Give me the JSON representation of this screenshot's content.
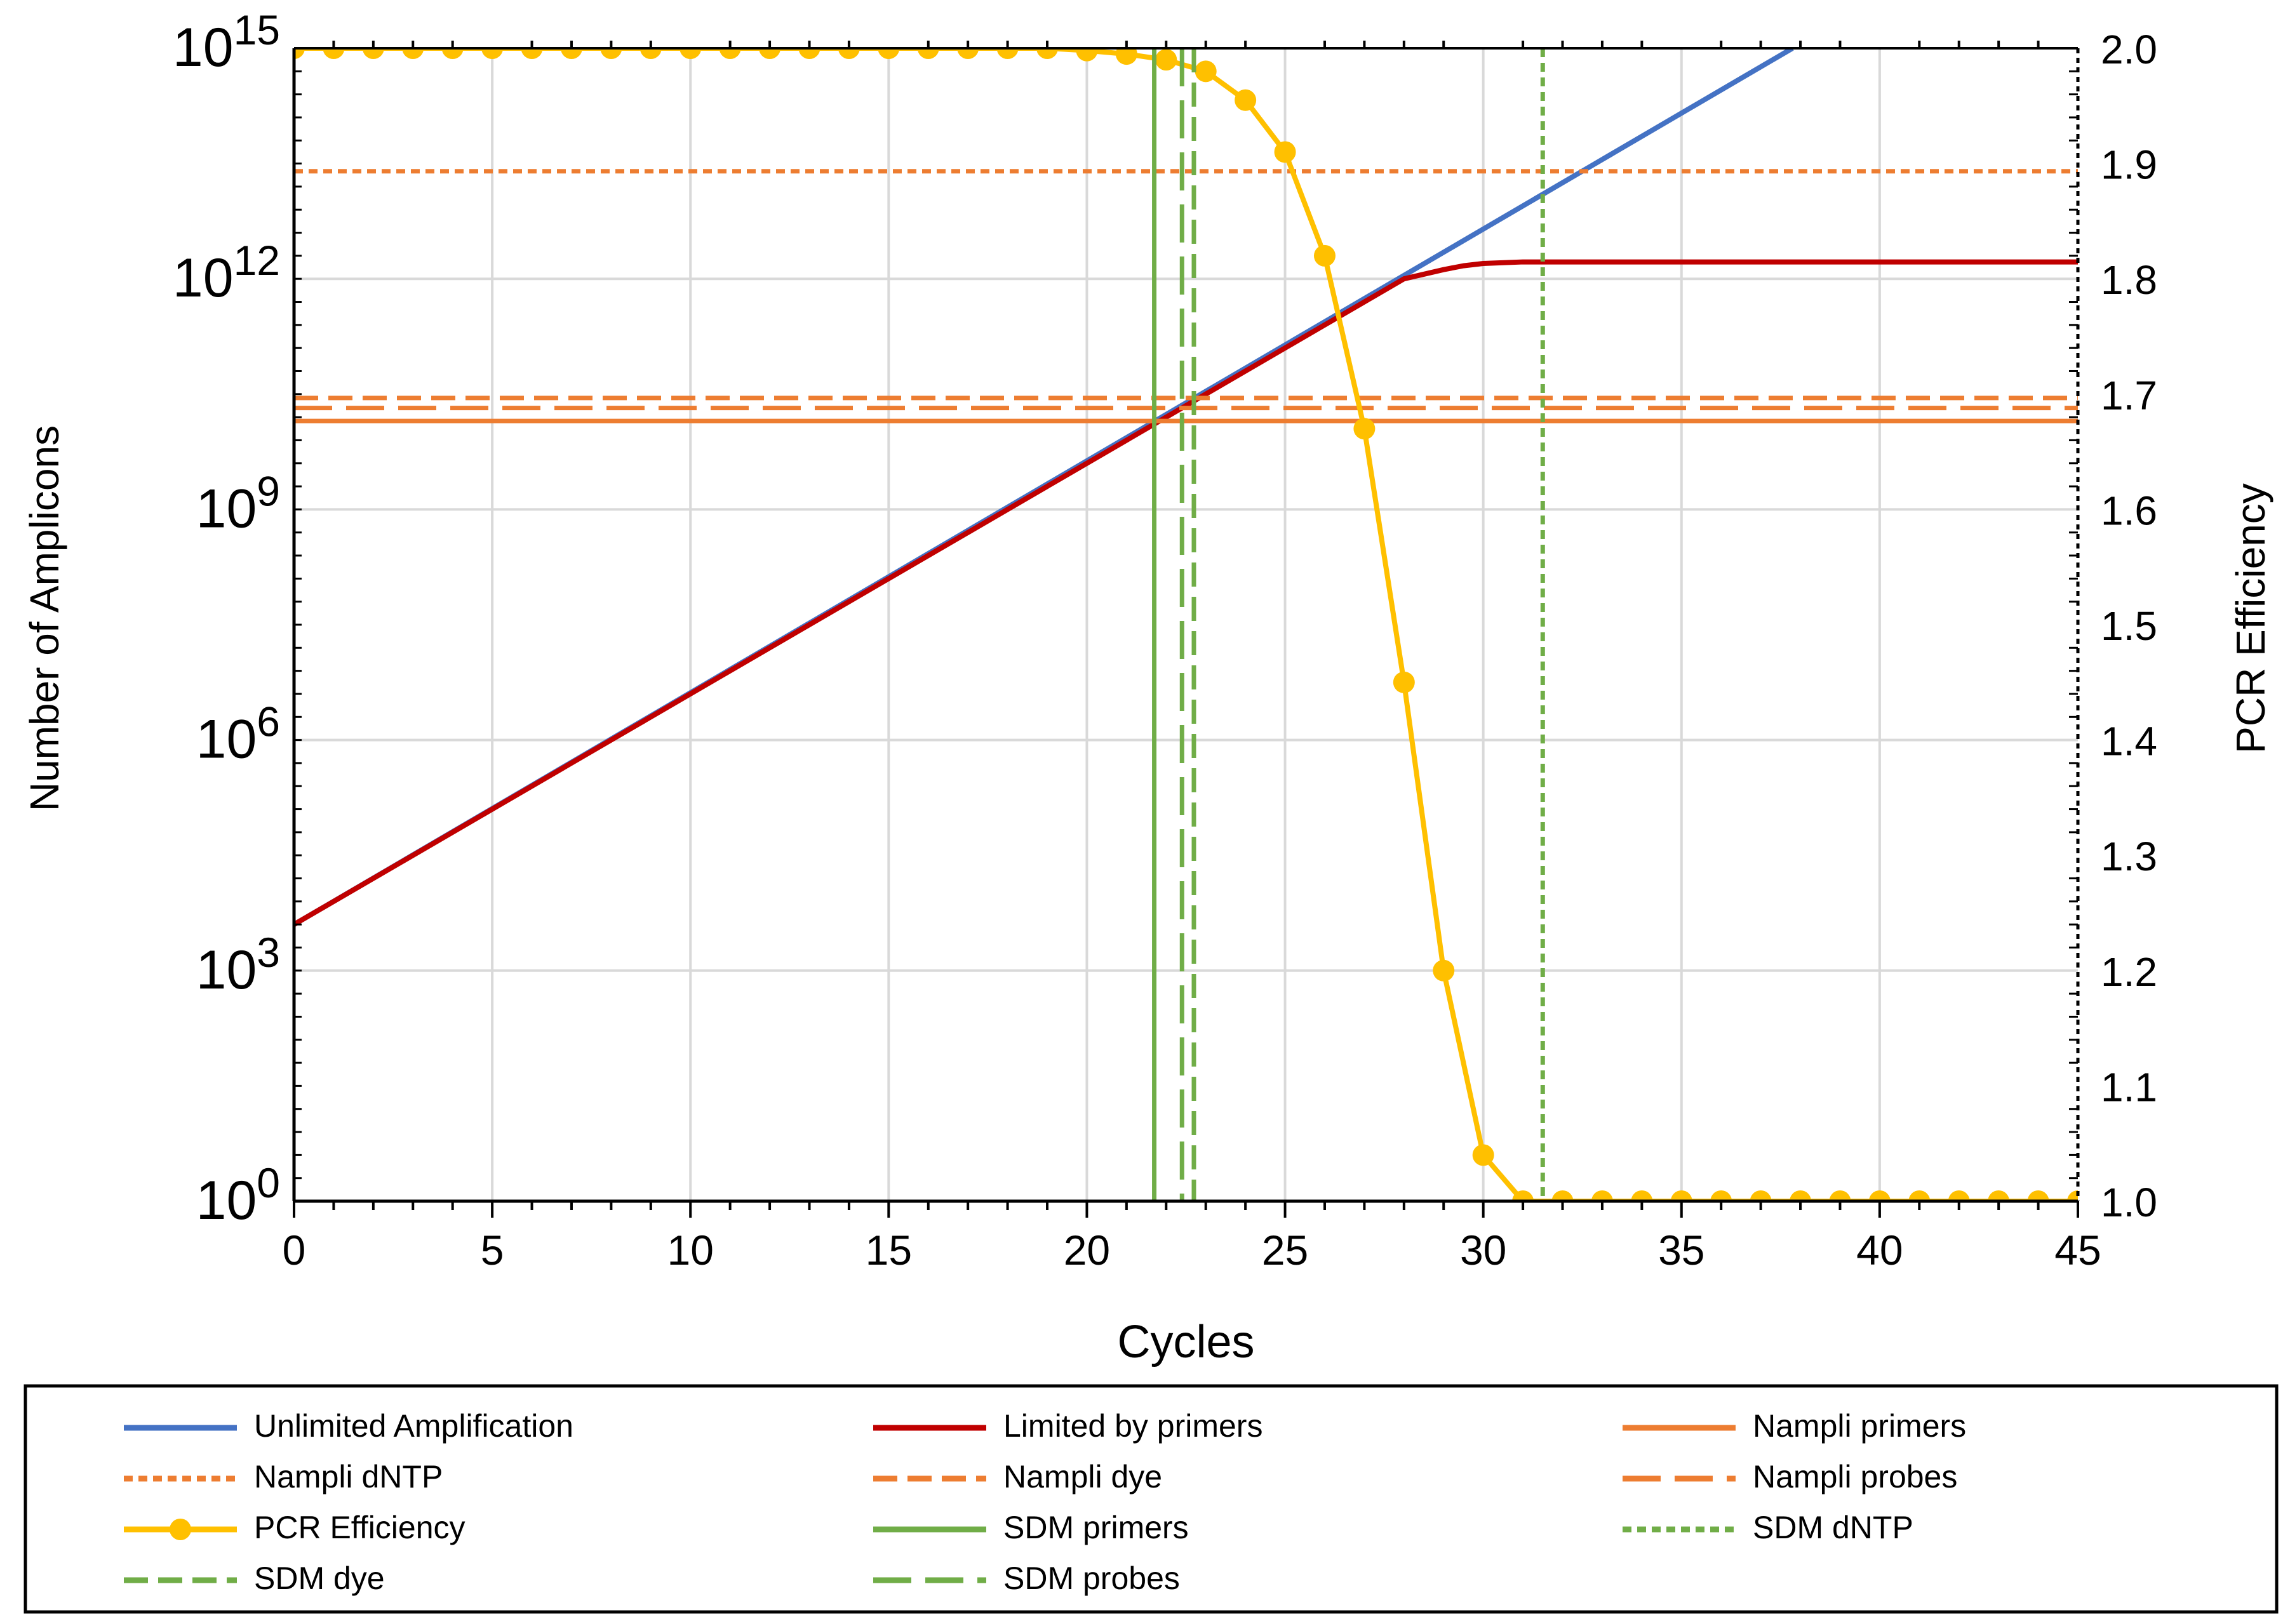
{
  "chart_data": {
    "type": "line",
    "xlabel": "Cycles",
    "ylabel": "Number of Amplicons",
    "y2label": "PCR Efficiency",
    "xlim": [
      0,
      45
    ],
    "ylim_log10": [
      0,
      15
    ],
    "y2lim": [
      1.0,
      2.0
    ],
    "grid": true,
    "legend_position": "bottom",
    "x_ticks": [
      "0",
      "5",
      "10",
      "15",
      "20",
      "25",
      "30",
      "35",
      "40",
      "45"
    ],
    "y_ticks": [
      {
        "base": "10",
        "exp": "15",
        "log10": 15
      },
      {
        "base": "10",
        "exp": "12",
        "log10": 12
      },
      {
        "base": "10",
        "exp": "9",
        "log10": 9
      },
      {
        "base": "10",
        "exp": "6",
        "log10": 6
      },
      {
        "base": "10",
        "exp": "3",
        "log10": 3
      },
      {
        "base": "10",
        "exp": "0",
        "log10": 0
      }
    ],
    "y2_ticks": [
      "2.0",
      "1.9",
      "1.8",
      "1.7",
      "1.6",
      "1.5",
      "1.4",
      "1.3",
      "1.2",
      "1.1",
      "1.0"
    ],
    "series": [
      {
        "name": "Unlimited Amplification",
        "color": "#4472C4",
        "style": "solid",
        "axis": "left",
        "x": [
          0,
          37.8
        ],
        "log10_y": [
          3.6,
          15
        ]
      },
      {
        "name": "Limited by primers",
        "color": "#C00000",
        "style": "solid",
        "axis": "left",
        "x": [
          0,
          26,
          27,
          28,
          29,
          29.5,
          30,
          31,
          45
        ],
        "log10_y": [
          3.6,
          11.4,
          11.7,
          12.0,
          12.12,
          12.17,
          12.2,
          12.22,
          12.22
        ]
      },
      {
        "name": "Nampli primers",
        "color": "#ED7D31",
        "style": "solid",
        "axis": "left",
        "hline": 10.15
      },
      {
        "name": "Nampli dNTP",
        "color": "#ED7D31",
        "style": "dot",
        "axis": "left",
        "hline": 13.4
      },
      {
        "name": "Nampli dye",
        "color": "#ED7D31",
        "style": "dash",
        "axis": "left",
        "hline": 10.45
      },
      {
        "name": "Nampli probes",
        "color": "#ED7D31",
        "style": "longdash",
        "axis": "left",
        "hline": 10.32
      },
      {
        "name": "PCR Efficiency",
        "color": "#FFC000",
        "style": "marker",
        "axis": "right",
        "x": [
          0,
          1,
          2,
          3,
          4,
          5,
          6,
          7,
          8,
          9,
          10,
          11,
          12,
          13,
          14,
          15,
          16,
          17,
          18,
          19,
          20,
          21,
          22,
          23,
          24,
          25,
          26,
          27,
          28,
          29,
          30,
          31,
          32,
          33,
          34,
          35,
          36,
          37,
          38,
          39,
          40,
          41,
          42,
          43,
          44,
          45
        ],
        "y": [
          2.0,
          2.0,
          2.0,
          2.0,
          2.0,
          2.0,
          2.0,
          2.0,
          2.0,
          2.0,
          2.0,
          2.0,
          2.0,
          2.0,
          2.0,
          2.0,
          2.0,
          2.0,
          2.0,
          2.0,
          1.998,
          1.995,
          1.99,
          1.98,
          1.955,
          1.91,
          1.82,
          1.67,
          1.45,
          1.2,
          1.04,
          1.0,
          1.0,
          1.0,
          1.0,
          1.0,
          1.0,
          1.0,
          1.0,
          1.0,
          1.0,
          1.0,
          1.0,
          1.0,
          1.0,
          1.0
        ]
      },
      {
        "name": "SDM primers",
        "color": "#70AD47",
        "style": "solid",
        "axis": "left",
        "vline": 21.7
      },
      {
        "name": "SDM dNTP",
        "color": "#70AD47",
        "style": "dot",
        "axis": "left",
        "vline": 31.5
      },
      {
        "name": "SDM dye",
        "color": "#70AD47",
        "style": "dash",
        "axis": "left",
        "vline": 22.7
      },
      {
        "name": "SDM probes",
        "color": "#70AD47",
        "style": "longdash",
        "axis": "left",
        "vline": 22.4
      }
    ]
  }
}
